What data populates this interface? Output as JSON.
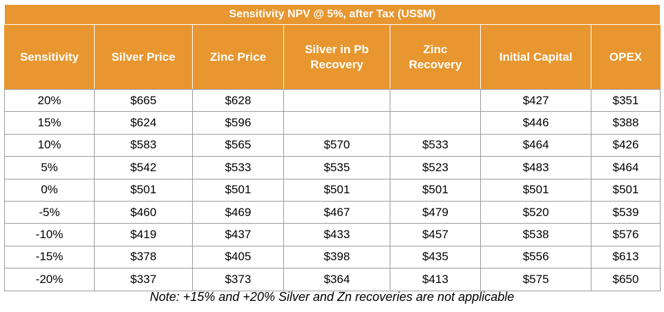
{
  "table": {
    "title": "Sensitivity NPV @ 5%, after Tax (US$M)",
    "columns": [
      [
        "Sensitivity"
      ],
      [
        "Silver Price"
      ],
      [
        "Zinc Price"
      ],
      [
        "Silver in Pb",
        "Recovery"
      ],
      [
        "Zinc",
        "Recovery"
      ],
      [
        "Initial Capital"
      ],
      [
        "OPEX"
      ]
    ],
    "rows": [
      [
        "20%",
        "$665",
        "$628",
        "",
        "",
        "$427",
        "$351"
      ],
      [
        "15%",
        "$624",
        "$596",
        "",
        "",
        "$446",
        "$388"
      ],
      [
        "10%",
        "$583",
        "$565",
        "$570",
        "$533",
        "$464",
        "$426"
      ],
      [
        "5%",
        "$542",
        "$533",
        "$535",
        "$523",
        "$483",
        "$464"
      ],
      [
        "0%",
        "$501",
        "$501",
        "$501",
        "$501",
        "$501",
        "$501"
      ],
      [
        "-5%",
        "$460",
        "$469",
        "$467",
        "$479",
        "$520",
        "$539"
      ],
      [
        "-10%",
        "$419",
        "$437",
        "$433",
        "$457",
        "$538",
        "$576"
      ],
      [
        "-15%",
        "$378",
        "$405",
        "$398",
        "$435",
        "$556",
        "$613"
      ],
      [
        "-20%",
        "$337",
        "$373",
        "$364",
        "$413",
        "$575",
        "$650"
      ]
    ],
    "header_color": "#E8962F"
  },
  "note": "Note: +15% and +20% Silver and Zn recoveries are not applicable"
}
